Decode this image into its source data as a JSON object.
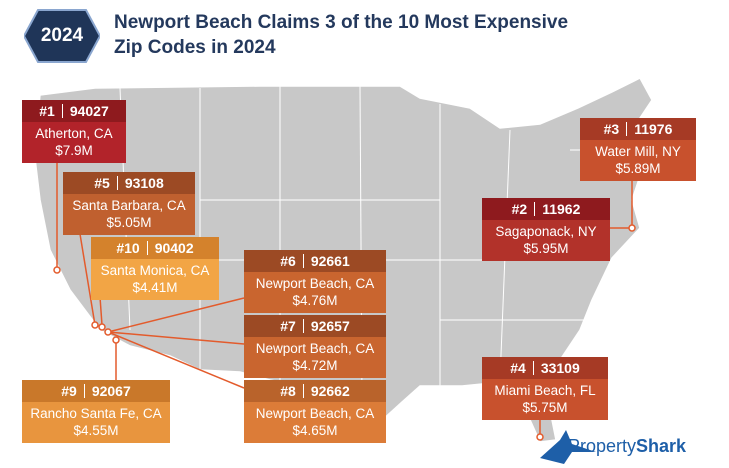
{
  "header": {
    "badge": "2024",
    "title_lines": [
      "Newport Beach Claims 3 of the 10 Most Expensive",
      "Zip Codes in 2024"
    ]
  },
  "callouts": [
    {
      "rank": "#1",
      "zip": "94027",
      "place": "Atherton, CA",
      "price": "$7.9M"
    },
    {
      "rank": "#5",
      "zip": "93108",
      "place": "Santa Barbara, CA",
      "price": "$5.05M"
    },
    {
      "rank": "#10",
      "zip": "90402",
      "place": "Santa Monica, CA",
      "price": "$4.41M"
    },
    {
      "rank": "#6",
      "zip": "92661",
      "place": "Newport Beach, CA",
      "price": "$4.76M"
    },
    {
      "rank": "#7",
      "zip": "92657",
      "place": "Newport Beach, CA",
      "price": "$4.72M"
    },
    {
      "rank": "#8",
      "zip": "92662",
      "place": "Newport Beach, CA",
      "price": "$4.65M"
    },
    {
      "rank": "#9",
      "zip": "92067",
      "place": "Rancho Santa Fe, CA",
      "price": "$4.55M"
    },
    {
      "rank": "#3",
      "zip": "11976",
      "place": "Water Mill, NY",
      "price": "$5.89M"
    },
    {
      "rank": "#2",
      "zip": "11962",
      "place": "Sagaponack, NY",
      "price": "$5.95M"
    },
    {
      "rank": "#4",
      "zip": "33109",
      "place": "Miami Beach, FL",
      "price": "$5.75M"
    }
  ],
  "logo": {
    "part1": "Property",
    "part2": "Shark"
  }
}
